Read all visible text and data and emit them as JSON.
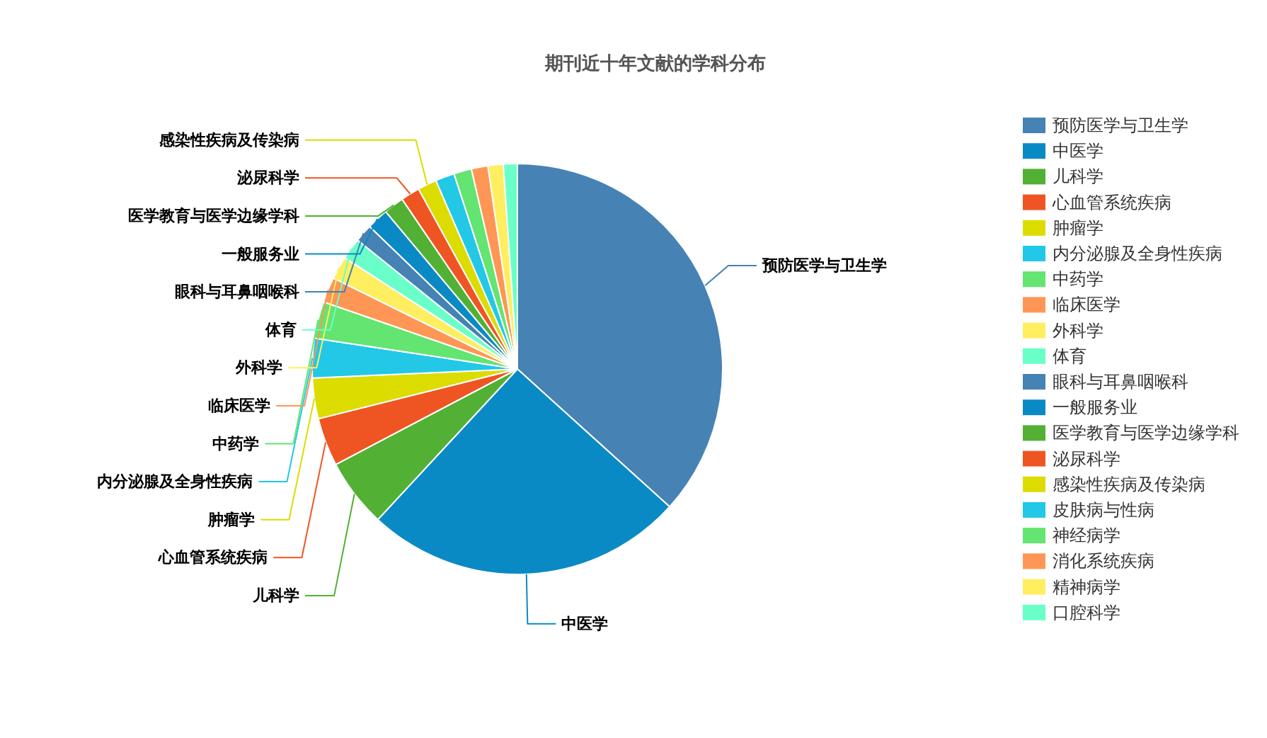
{
  "chart_data": {
    "type": "pie",
    "title": "期刊近十年文献的学科分布",
    "categories": [
      "预防医学与卫生学",
      "中医学",
      "儿科学",
      "心血管系统疾病",
      "肿瘤学",
      "内分泌腺及全身性疾病",
      "中药学",
      "临床医学",
      "外科学",
      "体育",
      "眼科与耳鼻咽喉科",
      "一般服务业",
      "医学教育与医学边缘学科",
      "泌尿科学",
      "感染性疾病及传染病",
      "皮肤病与性病",
      "神经病学",
      "消化系统疾病",
      "精神病学",
      "口腔科学"
    ],
    "values": [
      36.7,
      25.2,
      5.4,
      3.8,
      3.2,
      3.1,
      2.9,
      2.0,
      1.8,
      1.7,
      1.4,
      1.7,
      1.6,
      1.5,
      1.5,
      1.5,
      1.4,
      1.3,
      1.2,
      1.1
    ],
    "colors": [
      "#4682b4",
      "#0a8ac4",
      "#52b034",
      "#ef5523",
      "#dcdc00",
      "#22c8e6",
      "#64e470",
      "#ff9655",
      "#ffee5f",
      "#6affc8",
      "#4682b4",
      "#0a8ac4",
      "#52b034",
      "#ef5523",
      "#dcdc00",
      "#22c8e6",
      "#64e470",
      "#ff9655",
      "#ffee5f",
      "#6affc8"
    ],
    "annotations": [
      "预防医学与卫生学",
      "中医学",
      "儿科学",
      "心血管系统疾病",
      "肿瘤学",
      "内分泌腺及全身性疾病",
      "中药学",
      "临床医学",
      "外科学",
      "体育",
      "眼科与耳鼻咽喉科",
      "一般服务业",
      "医学教育与医学边缘学科",
      "泌尿科学",
      "感染性疾病及传染病"
    ],
    "legend": "right"
  }
}
